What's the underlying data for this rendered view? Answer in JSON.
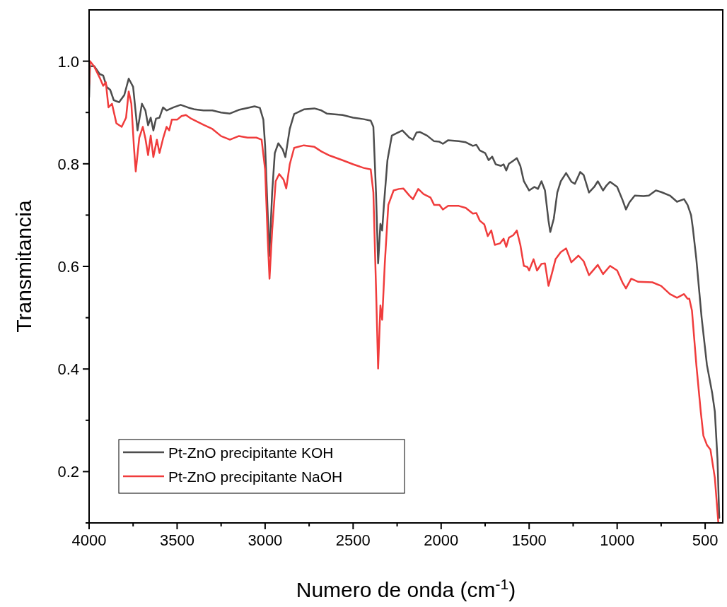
{
  "chart_data": {
    "type": "line",
    "xlabel": "Numero de onda (cm$^{-1}$)",
    "ylabel": "Transmitancia",
    "xlim": [
      4000,
      400
    ],
    "ylim": [
      0.1,
      1.1
    ],
    "xticks": [
      4000,
      {
        "value": 3750,
        "label": null
      },
      3500,
      {
        "value": 3250,
        "label": null
      },
      3000,
      {
        "value": 2750,
        "label": null
      },
      2500,
      {
        "value": 2250,
        "label": null
      },
      2000,
      {
        "value": 1750,
        "label": null
      },
      1500,
      {
        "value": 1250,
        "label": null
      },
      1000,
      {
        "value": 750,
        "label": null
      },
      500
    ],
    "yticks": [
      {
        "value": 0.1,
        "label": null
      },
      0.2,
      {
        "value": 0.3,
        "label": null
      },
      0.4,
      {
        "value": 0.5,
        "label": null
      },
      0.6,
      {
        "value": 0.7,
        "label": null
      },
      0.8,
      {
        "value": 0.9,
        "label": null
      },
      {
        "value": 1,
        "label": "1.0"
      }
    ],
    "grid": false,
    "legend": "bottom left",
    "line_style": "solid",
    "marker": "none",
    "series": [
      {
        "name": "Pt-ZnO precipitante KOH",
        "color": "#4d4d4d",
        "x": [
          4000,
          3995,
          3970,
          3940,
          3920,
          3900,
          3880,
          3860,
          3830,
          3800,
          3775,
          3750,
          3725,
          3700,
          3680,
          3665,
          3650,
          3635,
          3620,
          3600,
          3580,
          3560,
          3520,
          3480,
          3440,
          3400,
          3350,
          3300,
          3250,
          3200,
          3150,
          3100,
          3060,
          3030,
          3010,
          3000,
          2976,
          2960,
          2945,
          2925,
          2900,
          2885,
          2860,
          2835,
          2780,
          2720,
          2680,
          2650,
          2560,
          2500,
          2440,
          2400,
          2385,
          2370,
          2358,
          2345,
          2335,
          2325,
          2305,
          2280,
          2250,
          2220,
          2180,
          2160,
          2140,
          2120,
          2080,
          2040,
          2010,
          1990,
          1960,
          1900,
          1860,
          1820,
          1800,
          1780,
          1750,
          1730,
          1710,
          1690,
          1660,
          1645,
          1630,
          1615,
          1590,
          1570,
          1550,
          1530,
          1500,
          1470,
          1450,
          1430,
          1410,
          1390,
          1380,
          1360,
          1340,
          1320,
          1290,
          1260,
          1240,
          1210,
          1190,
          1160,
          1130,
          1110,
          1080,
          1060,
          1040,
          1000,
          970,
          950,
          930,
          900,
          850,
          820,
          780,
          750,
          700,
          660,
          620,
          600,
          580,
          570,
          550,
          520,
          490,
          460,
          445,
          430,
          420
        ],
        "values": [
          0.93,
          0.99,
          0.99,
          0.975,
          0.972,
          0.95,
          0.944,
          0.924,
          0.92,
          0.934,
          0.966,
          0.95,
          0.865,
          0.917,
          0.904,
          0.875,
          0.89,
          0.865,
          0.888,
          0.89,
          0.91,
          0.904,
          0.91,
          0.915,
          0.91,
          0.906,
          0.904,
          0.904,
          0.9,
          0.898,
          0.905,
          0.909,
          0.912,
          0.909,
          0.886,
          0.835,
          0.62,
          0.744,
          0.821,
          0.84,
          0.828,
          0.813,
          0.868,
          0.897,
          0.906,
          0.908,
          0.904,
          0.898,
          0.895,
          0.89,
          0.887,
          0.884,
          0.872,
          0.744,
          0.606,
          0.683,
          0.67,
          0.72,
          0.807,
          0.855,
          0.86,
          0.865,
          0.851,
          0.847,
          0.861,
          0.862,
          0.855,
          0.844,
          0.843,
          0.839,
          0.846,
          0.844,
          0.842,
          0.835,
          0.837,
          0.826,
          0.821,
          0.807,
          0.814,
          0.799,
          0.796,
          0.799,
          0.787,
          0.8,
          0.806,
          0.811,
          0.796,
          0.766,
          0.748,
          0.755,
          0.751,
          0.766,
          0.748,
          0.689,
          0.667,
          0.693,
          0.744,
          0.766,
          0.782,
          0.765,
          0.761,
          0.784,
          0.778,
          0.744,
          0.755,
          0.766,
          0.748,
          0.758,
          0.765,
          0.755,
          0.73,
          0.711,
          0.725,
          0.738,
          0.737,
          0.738,
          0.748,
          0.745,
          0.738,
          0.726,
          0.731,
          0.72,
          0.7,
          0.675,
          0.614,
          0.5,
          0.408,
          0.353,
          0.317,
          0.225,
          0.11
        ]
      },
      {
        "name": "Pt-ZnO precipitante NaOH",
        "color": "#f03c3c",
        "x": [
          4000,
          3995,
          3970,
          3940,
          3920,
          3905,
          3890,
          3870,
          3845,
          3815,
          3790,
          3775,
          3760,
          3745,
          3735,
          3715,
          3695,
          3680,
          3665,
          3650,
          3635,
          3615,
          3600,
          3580,
          3560,
          3545,
          3530,
          3500,
          3475,
          3450,
          3420,
          3390,
          3350,
          3300,
          3250,
          3200,
          3150,
          3100,
          3050,
          3020,
          3000,
          2985,
          2975,
          2960,
          2940,
          2920,
          2895,
          2880,
          2860,
          2835,
          2780,
          2720,
          2680,
          2640,
          2560,
          2500,
          2440,
          2400,
          2385,
          2370,
          2358,
          2345,
          2335,
          2320,
          2300,
          2270,
          2240,
          2215,
          2180,
          2160,
          2130,
          2100,
          2060,
          2040,
          2010,
          1990,
          1960,
          1900,
          1860,
          1820,
          1800,
          1780,
          1755,
          1735,
          1715,
          1695,
          1665,
          1645,
          1630,
          1615,
          1590,
          1570,
          1550,
          1530,
          1510,
          1500,
          1475,
          1455,
          1430,
          1410,
          1390,
          1370,
          1350,
          1320,
          1290,
          1260,
          1220,
          1190,
          1160,
          1110,
          1080,
          1040,
          1000,
          970,
          950,
          920,
          880,
          800,
          750,
          700,
          660,
          620,
          600,
          590,
          575,
          550,
          525,
          510,
          490,
          470,
          445,
          425
        ],
        "values": [
          0.955,
          1.0,
          0.989,
          0.968,
          0.952,
          0.959,
          0.91,
          0.917,
          0.879,
          0.872,
          0.89,
          0.941,
          0.917,
          0.831,
          0.785,
          0.851,
          0.872,
          0.849,
          0.817,
          0.855,
          0.813,
          0.847,
          0.821,
          0.849,
          0.872,
          0.865,
          0.886,
          0.886,
          0.893,
          0.895,
          0.888,
          0.883,
          0.876,
          0.868,
          0.854,
          0.847,
          0.854,
          0.851,
          0.851,
          0.847,
          0.789,
          0.652,
          0.576,
          0.67,
          0.766,
          0.78,
          0.769,
          0.752,
          0.799,
          0.831,
          0.836,
          0.833,
          0.824,
          0.817,
          0.807,
          0.799,
          0.792,
          0.789,
          0.744,
          0.559,
          0.401,
          0.524,
          0.496,
          0.606,
          0.72,
          0.748,
          0.751,
          0.752,
          0.738,
          0.731,
          0.751,
          0.741,
          0.734,
          0.72,
          0.72,
          0.711,
          0.718,
          0.718,
          0.714,
          0.703,
          0.704,
          0.689,
          0.682,
          0.659,
          0.67,
          0.642,
          0.645,
          0.654,
          0.638,
          0.656,
          0.661,
          0.67,
          0.642,
          0.601,
          0.599,
          0.592,
          0.614,
          0.592,
          0.605,
          0.606,
          0.562,
          0.587,
          0.614,
          0.628,
          0.635,
          0.608,
          0.621,
          0.61,
          0.583,
          0.603,
          0.585,
          0.601,
          0.592,
          0.569,
          0.557,
          0.576,
          0.57,
          0.569,
          0.562,
          0.546,
          0.539,
          0.546,
          0.537,
          0.537,
          0.514,
          0.408,
          0.317,
          0.27,
          0.252,
          0.243,
          0.188,
          0.1
        ]
      }
    ]
  }
}
